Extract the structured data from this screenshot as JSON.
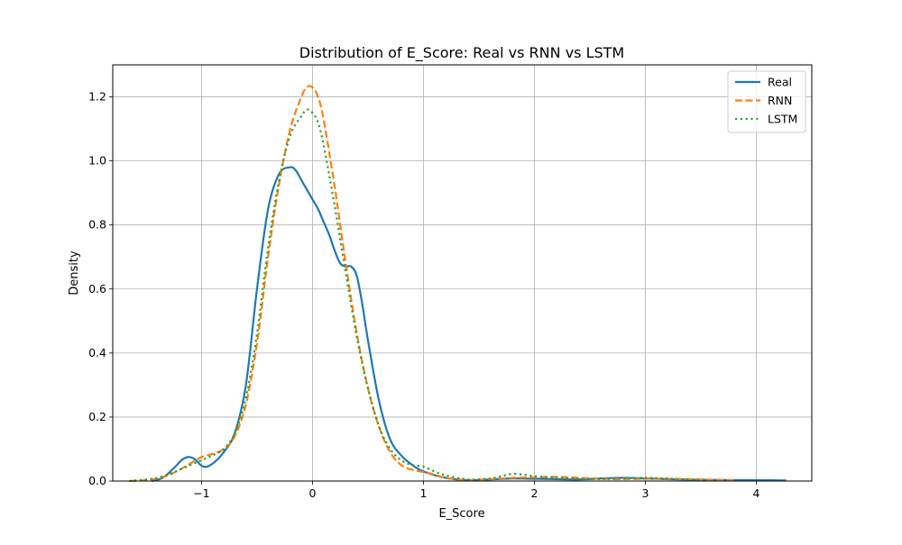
{
  "chart_data": {
    "type": "line",
    "title": "Distribution of E_Score: Real vs RNN vs LSTM",
    "xlabel": "E_Score",
    "ylabel": "Density",
    "xlim": [
      -1.8,
      4.5
    ],
    "ylim": [
      0,
      1.3
    ],
    "xticks": [
      -1,
      0,
      1,
      2,
      3,
      4
    ],
    "xtick_labels": [
      "−1",
      "0",
      "1",
      "2",
      "3",
      "4"
    ],
    "yticks": [
      0.0,
      0.2,
      0.4,
      0.6,
      0.8,
      1.0,
      1.2
    ],
    "ytick_labels": [
      "0.0",
      "0.2",
      "0.4",
      "0.6",
      "0.8",
      "1.0",
      "1.2"
    ],
    "grid": true,
    "legend_position": "top-right",
    "series": [
      {
        "name": "Real",
        "color": "#1f77b4",
        "dash": "solid",
        "x": [
          -1.45,
          -1.35,
          -1.25,
          -1.18,
          -1.12,
          -1.06,
          -1.0,
          -0.95,
          -0.88,
          -0.8,
          -0.7,
          -0.6,
          -0.5,
          -0.4,
          -0.3,
          -0.2,
          -0.15,
          -0.1,
          -0.05,
          0.0,
          0.05,
          0.1,
          0.15,
          0.2,
          0.25,
          0.3,
          0.35,
          0.4,
          0.45,
          0.5,
          0.6,
          0.7,
          0.8,
          0.9,
          1.0,
          1.2,
          1.4,
          1.6,
          1.8,
          2.0,
          2.2,
          2.4,
          2.6,
          2.8,
          3.0,
          3.2,
          3.5,
          3.8,
          4.0,
          4.27
        ],
        "y": [
          0.0,
          0.01,
          0.04,
          0.065,
          0.075,
          0.068,
          0.048,
          0.045,
          0.06,
          0.09,
          0.15,
          0.3,
          0.6,
          0.85,
          0.96,
          0.98,
          0.97,
          0.94,
          0.91,
          0.88,
          0.85,
          0.81,
          0.77,
          0.72,
          0.68,
          0.67,
          0.67,
          0.64,
          0.55,
          0.44,
          0.25,
          0.13,
          0.08,
          0.05,
          0.03,
          0.01,
          0.003,
          0.005,
          0.008,
          0.007,
          0.006,
          0.005,
          0.008,
          0.01,
          0.008,
          0.006,
          0.004,
          0.003,
          0.003,
          0.002
        ]
      },
      {
        "name": "RNN",
        "color": "#ff7f0e",
        "dash": "dashed",
        "x": [
          -1.65,
          -1.5,
          -1.4,
          -1.3,
          -1.2,
          -1.1,
          -1.0,
          -0.9,
          -0.8,
          -0.7,
          -0.6,
          -0.5,
          -0.4,
          -0.3,
          -0.2,
          -0.1,
          -0.05,
          0.0,
          0.05,
          0.1,
          0.2,
          0.3,
          0.4,
          0.5,
          0.6,
          0.7,
          0.8,
          0.9,
          1.0,
          1.1,
          1.2,
          1.4,
          1.6,
          1.8,
          2.0,
          2.2,
          2.4,
          2.6,
          2.8,
          3.0,
          3.2,
          3.5,
          3.8
        ],
        "y": [
          0.0,
          0.003,
          0.008,
          0.018,
          0.035,
          0.055,
          0.075,
          0.085,
          0.1,
          0.14,
          0.24,
          0.43,
          0.7,
          0.93,
          1.1,
          1.2,
          1.23,
          1.23,
          1.2,
          1.13,
          0.92,
          0.68,
          0.46,
          0.29,
          0.17,
          0.09,
          0.05,
          0.035,
          0.028,
          0.02,
          0.01,
          0.003,
          0.006,
          0.01,
          0.012,
          0.013,
          0.01,
          0.007,
          0.006,
          0.007,
          0.007,
          0.005,
          0.002
        ]
      },
      {
        "name": "LSTM",
        "color": "#2ca02c",
        "dash": "dotted",
        "x": [
          -1.65,
          -1.5,
          -1.4,
          -1.3,
          -1.2,
          -1.1,
          -1.0,
          -0.9,
          -0.8,
          -0.7,
          -0.6,
          -0.5,
          -0.4,
          -0.3,
          -0.2,
          -0.1,
          -0.05,
          0.0,
          0.05,
          0.1,
          0.2,
          0.3,
          0.4,
          0.5,
          0.6,
          0.7,
          0.8,
          0.9,
          1.0,
          1.1,
          1.2,
          1.4,
          1.6,
          1.7,
          1.8,
          1.9,
          2.0,
          2.2,
          2.4,
          2.6,
          2.8,
          3.0,
          3.2,
          3.5
        ],
        "y": [
          0.0,
          0.005,
          0.01,
          0.02,
          0.035,
          0.05,
          0.065,
          0.08,
          0.1,
          0.15,
          0.26,
          0.46,
          0.73,
          0.94,
          1.08,
          1.14,
          1.16,
          1.15,
          1.12,
          1.05,
          0.86,
          0.65,
          0.45,
          0.29,
          0.17,
          0.1,
          0.065,
          0.05,
          0.045,
          0.03,
          0.018,
          0.005,
          0.008,
          0.015,
          0.022,
          0.02,
          0.015,
          0.01,
          0.007,
          0.006,
          0.008,
          0.01,
          0.008,
          0.003
        ]
      }
    ]
  }
}
